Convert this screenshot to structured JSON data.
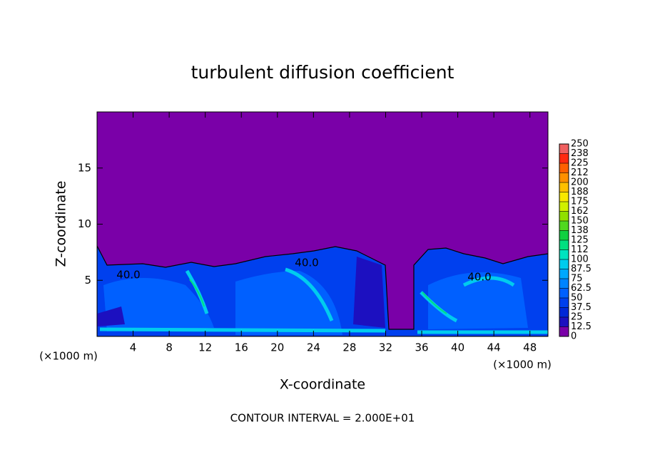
{
  "chart_data": {
    "type": "contour",
    "title": "turbulent diffusion coefficient",
    "x_label": "X-coordinate",
    "y_label": "Z-coordinate",
    "x_unit_left": "(×1000 m)",
    "x_unit_right": "(×1000 m)",
    "footer": "CONTOUR INTERVAL = 2.000E+01",
    "contour_labels": [
      "40.0",
      "40.0",
      "40.0"
    ],
    "xlim": [
      0,
      50
    ],
    "ylim": [
      0,
      20
    ],
    "xticks": [
      4,
      8,
      12,
      16,
      20,
      24,
      28,
      32,
      36,
      40,
      44,
      48
    ],
    "yticks": [
      5,
      10,
      15
    ],
    "levels": [
      0,
      12.5,
      25,
      37.5,
      50,
      62.5,
      75,
      87.5,
      100,
      112,
      125,
      138,
      150,
      162,
      175,
      188,
      200,
      212,
      225,
      238,
      250
    ],
    "colors": [
      "#7a00a8",
      "#1c10c0",
      "#0028d8",
      "#0040ee",
      "#0060ff",
      "#0084ff",
      "#00a8ff",
      "#00ccee",
      "#00e4c0",
      "#00e080",
      "#10d040",
      "#50d820",
      "#90e000",
      "#d0f000",
      "#f8e800",
      "#ffc000",
      "#ff9000",
      "#ff6000",
      "#ff2a10",
      "#f06060"
    ]
  }
}
